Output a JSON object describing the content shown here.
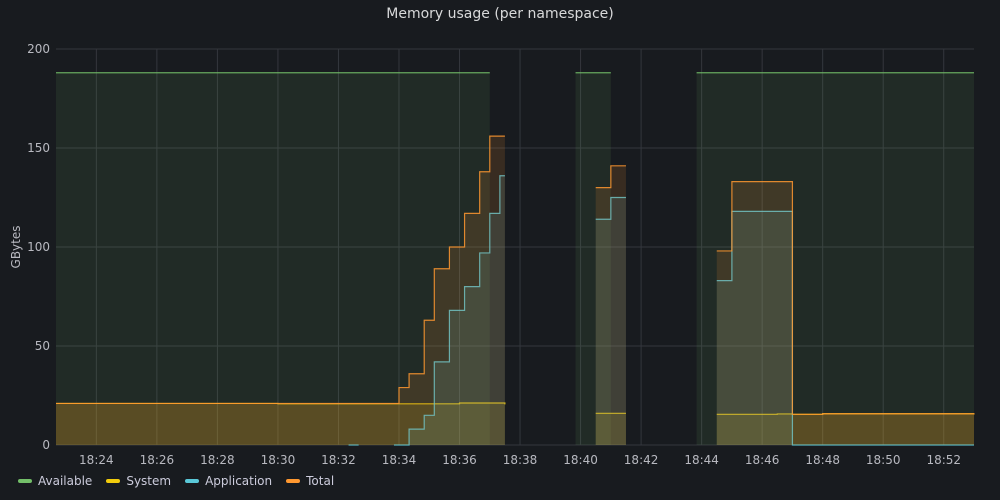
{
  "panel": {
    "title": "Memory usage (per namespace)"
  },
  "chart_data": {
    "type": "area",
    "title": "Memory usage (per namespace)",
    "xlabel": "",
    "ylabel": "GBytes",
    "ylim": [
      0,
      200
    ],
    "y_ticks": [
      0,
      50,
      100,
      150,
      200
    ],
    "x_range": [
      "18:22:40",
      "18:53:00"
    ],
    "x_ticks": [
      "18:24",
      "18:26",
      "18:28",
      "18:30",
      "18:32",
      "18:34",
      "18:36",
      "18:38",
      "18:40",
      "18:42",
      "18:44",
      "18:46",
      "18:48",
      "18:50",
      "18:52"
    ],
    "grid": true,
    "legend": "bottom-left",
    "series": [
      {
        "name": "Available",
        "color": "#73bf69",
        "segments": [
          [
            [
              "18:22:40",
              188
            ],
            [
              "18:37:00",
              188
            ]
          ],
          [
            [
              "18:39:50",
              188
            ],
            [
              "18:41:00",
              188
            ]
          ],
          [
            [
              "18:43:50",
              188
            ],
            [
              "18:53:00",
              188
            ]
          ]
        ]
      },
      {
        "name": "System",
        "color": "#f2cc0c",
        "segments": [
          [
            [
              "18:22:40",
              21
            ],
            [
              "18:30:00",
              20.8
            ],
            [
              "18:34:00",
              20.8
            ],
            [
              "18:36:00",
              21.2
            ],
            [
              "18:37:30",
              20.5
            ]
          ],
          [
            [
              "18:40:30",
              16
            ],
            [
              "18:41:30",
              16
            ]
          ],
          [
            [
              "18:44:30",
              15.5
            ],
            [
              "18:46:30",
              15.7
            ],
            [
              "18:47:00",
              15.5
            ],
            [
              "18:48:00",
              15.8
            ],
            [
              "18:53:00",
              16
            ]
          ]
        ]
      },
      {
        "name": "Application",
        "color": "#5ac8d8",
        "segments": [
          [
            [
              "18:32:20",
              0
            ],
            [
              "18:32:40",
              0
            ]
          ],
          [
            [
              "18:33:50",
              0
            ],
            [
              "18:34:20",
              8
            ],
            [
              "18:34:50",
              15
            ],
            [
              "18:35:10",
              42
            ],
            [
              "18:35:40",
              68
            ],
            [
              "18:36:10",
              80
            ],
            [
              "18:36:40",
              97
            ],
            [
              "18:37:00",
              117
            ],
            [
              "18:37:20",
              136
            ],
            [
              "18:37:30",
              136
            ]
          ],
          [
            [
              "18:40:30",
              114
            ],
            [
              "18:41:00",
              125
            ],
            [
              "18:41:30",
              125
            ]
          ],
          [
            [
              "18:44:30",
              83
            ],
            [
              "18:45:00",
              118
            ],
            [
              "18:46:30",
              118
            ],
            [
              "18:47:00",
              0
            ],
            [
              "18:53:00",
              0
            ]
          ]
        ]
      },
      {
        "name": "Total",
        "color": "#ff9830",
        "segments": [
          [
            [
              "18:22:40",
              21
            ],
            [
              "18:33:40",
              21
            ],
            [
              "18:34:00",
              29
            ],
            [
              "18:34:20",
              36
            ],
            [
              "18:34:50",
              63
            ],
            [
              "18:35:10",
              89
            ],
            [
              "18:35:40",
              100
            ],
            [
              "18:36:10",
              117
            ],
            [
              "18:36:40",
              138
            ],
            [
              "18:37:00",
              156
            ],
            [
              "18:37:30",
              156
            ]
          ],
          [
            [
              "18:40:30",
              130
            ],
            [
              "18:41:00",
              141
            ],
            [
              "18:41:30",
              141
            ]
          ],
          [
            [
              "18:44:30",
              98
            ],
            [
              "18:45:00",
              133
            ],
            [
              "18:46:30",
              133
            ],
            [
              "18:47:00",
              15.5
            ],
            [
              "18:48:00",
              15.8
            ],
            [
              "18:53:00",
              16
            ]
          ]
        ]
      }
    ]
  }
}
